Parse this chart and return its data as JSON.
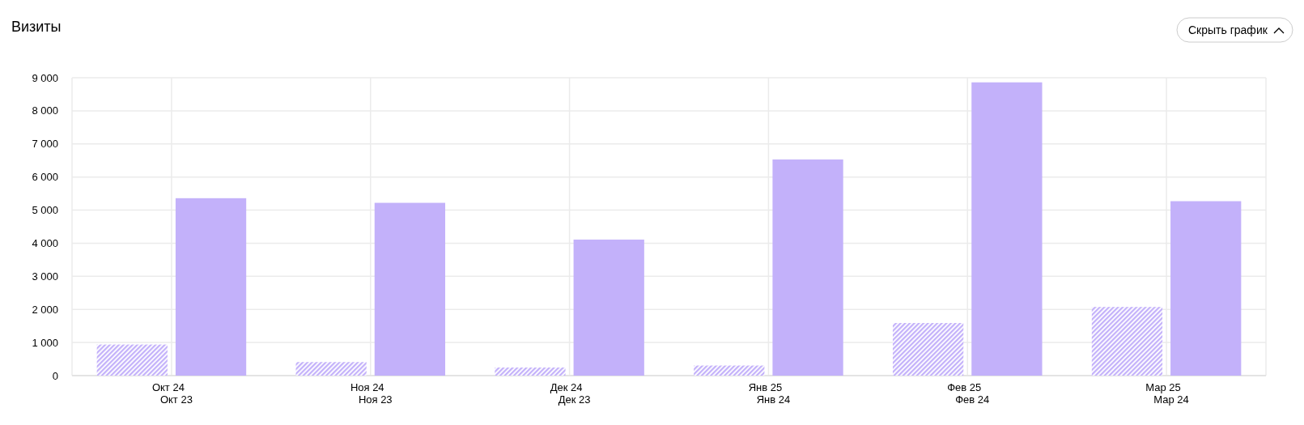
{
  "chart_data": {
    "type": "bar",
    "title": "Визиты",
    "categories": [
      "Окт 24\nОкт 23",
      "Ноя 24\nНоя 23",
      "Дек 24\nДек 23",
      "Янв 25\nЯнв 24",
      "Фев 25\nФев 24",
      "Мар 25\nМар 24"
    ],
    "series": [
      {
        "color": "#c3b1fa",
        "values": [
          940,
          410,
          245,
          305,
          1590,
          2075
        ]
      },
      {
        "color": "#c3b1fa",
        "values": [
          5360,
          5220,
          4110,
          6530,
          8860,
          5270
        ]
      }
    ],
    "ylim": [
      0,
      9000
    ],
    "yticks": [
      {
        "value": 0,
        "label": "0"
      },
      {
        "value": 1000,
        "label": "1 000"
      },
      {
        "value": 2000,
        "label": "2 000"
      },
      {
        "value": 3000,
        "label": "3 000"
      },
      {
        "value": 4000,
        "label": "4 000"
      },
      {
        "value": 5000,
        "label": "5 000"
      },
      {
        "value": 6000,
        "label": "6 000"
      },
      {
        "value": 7000,
        "label": "7 000"
      },
      {
        "value": 8000,
        "label": "8 000"
      },
      {
        "value": 9000,
        "label": "9 000"
      }
    ],
    "grid": true,
    "annotations": [
      "Скрыть график"
    ]
  }
}
